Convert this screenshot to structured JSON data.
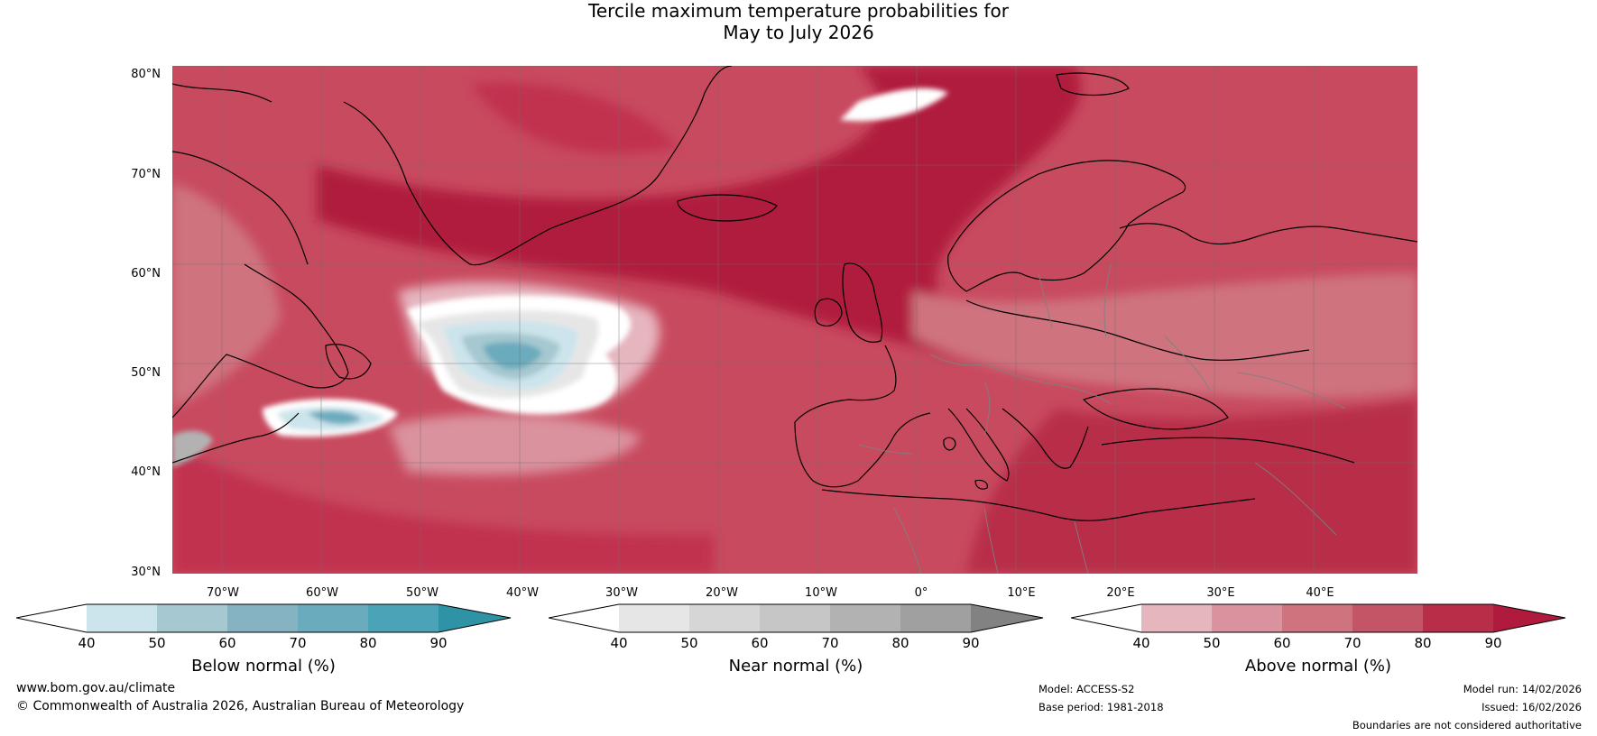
{
  "title": {
    "line1": "Tercile maximum temperature probabilities for",
    "line2": "May to July 2026"
  },
  "map": {
    "region": "North Atlantic and Europe",
    "land_outline_color": "#000000",
    "border_color": "#808080",
    "latitude_labels": [
      "80°N",
      "70°N",
      "60°N",
      "50°N",
      "40°N",
      "30°N"
    ],
    "longitude_labels": [
      "70°W",
      "60°W",
      "50°W",
      "40°W",
      "30°W",
      "20°W",
      "10°W",
      "0°",
      "10°E",
      "20°E",
      "30°E",
      "40°E"
    ]
  },
  "legends": [
    {
      "label": "Below normal (%)",
      "ticks": [
        "40",
        "50",
        "60",
        "70",
        "80",
        "90"
      ],
      "colors": [
        "#ffffff",
        "#cce4ec",
        "#a6c8d0",
        "#86b3c1",
        "#6aabbd",
        "#4aa3b6",
        "#2f93a6"
      ]
    },
    {
      "label": "Near normal (%)",
      "ticks": [
        "40",
        "50",
        "60",
        "70",
        "80",
        "90"
      ],
      "colors": [
        "#ffffff",
        "#e6e6e6",
        "#d6d6d6",
        "#c6c6c6",
        "#b2b2b2",
        "#a0a0a0",
        "#828282"
      ]
    },
    {
      "label": "Above normal (%)",
      "ticks": [
        "40",
        "50",
        "60",
        "70",
        "80",
        "90"
      ],
      "colors": [
        "#ffffff",
        "#e6b6bf",
        "#da929e",
        "#cf737f",
        "#c45567",
        "#b82e48",
        "#b01a3c"
      ]
    }
  ],
  "footer": {
    "website": "www.bom.gov.au/climate",
    "copyright": "© Commonwealth of Australia 2026, Australian Bureau of Meteorology",
    "model": "Model: ACCESS-S2",
    "base_period": "Base period: 1981-2018",
    "model_run": "Model run: 14/02/2026",
    "issued": "Issued: 16/02/2026",
    "disclaimer": "Boundaries are not considered authoritative"
  }
}
